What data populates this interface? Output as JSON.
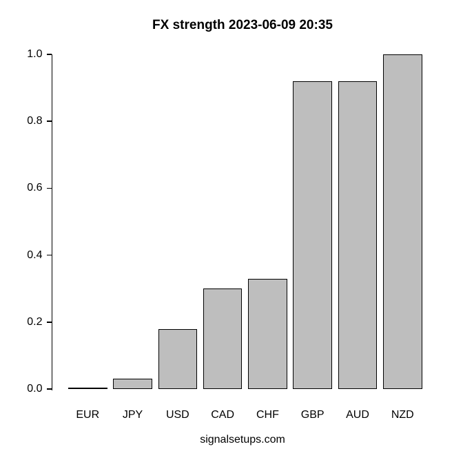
{
  "page": {
    "background": "#ffffff"
  },
  "chart_data": {
    "type": "bar",
    "title": "FX strength 2023-06-09 20:35",
    "caption": "signalsetups.com",
    "categories": [
      "EUR",
      "JPY",
      "USD",
      "CAD",
      "CHF",
      "GBP",
      "AUD",
      "NZD"
    ],
    "values": [
      0.0,
      0.03,
      0.18,
      0.3,
      0.33,
      0.92,
      0.92,
      1.0
    ],
    "xlabel": "",
    "ylabel": "",
    "ylim": [
      0.0,
      1.0
    ],
    "y_ticks": [
      0.0,
      0.2,
      0.4,
      0.6,
      0.8,
      1.0
    ],
    "y_tick_labels": [
      "0.0",
      "0.2",
      "0.4",
      "0.6",
      "0.8",
      "1.0"
    ],
    "grid": false,
    "legend_position": "none",
    "bar_fill_color": "#bebebe",
    "bar_border_color": "#000000",
    "axis_color": "#000000",
    "text_color": "#000000"
  }
}
